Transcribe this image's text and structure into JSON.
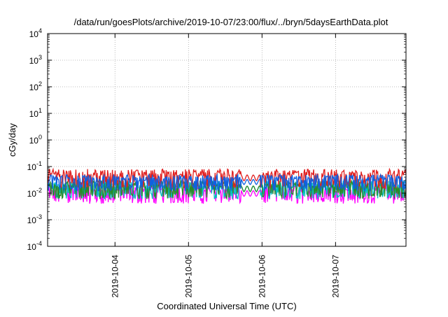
{
  "chart_data": {
    "type": "line",
    "title": "/data/run/goesPlots/archive/2019-10-07/23:00/flux/../bryn/5daysEarthData.plot",
    "xlabel": "Coordinated Universal Time (UTC)",
    "ylabel": "cGy/day",
    "yscale": "log",
    "ylim": [
      0.0001,
      10000
    ],
    "y_ticks": [
      {
        "value": 0.0001,
        "base": "10",
        "exp": "-4"
      },
      {
        "value": 0.001,
        "base": "10",
        "exp": "-3"
      },
      {
        "value": 0.01,
        "base": "10",
        "exp": "-2"
      },
      {
        "value": 0.1,
        "base": "10",
        "exp": "-1"
      },
      {
        "value": 1,
        "base": "10",
        "exp": "0"
      },
      {
        "value": 10,
        "base": "10",
        "exp": "1"
      },
      {
        "value": 100,
        "base": "10",
        "exp": "2"
      },
      {
        "value": 1000,
        "base": "10",
        "exp": "3"
      },
      {
        "value": 10000,
        "base": "10",
        "exp": "4"
      }
    ],
    "xlim": [
      "2019-10-03 02:00",
      "2019-10-07 23:00"
    ],
    "x_ticks": [
      "2019-10-04",
      "2019-10-05",
      "2019-10-06",
      "2019-10-07"
    ],
    "grid": true,
    "series": [
      {
        "color": "#ff00ff",
        "approx_range": [
          0.004,
          0.02
        ]
      },
      {
        "color": "#00c0c0",
        "approx_range": [
          0.006,
          0.03
        ]
      },
      {
        "color": "#2a8a2a",
        "approx_range": [
          0.006,
          0.03
        ]
      },
      {
        "color": "#e02020",
        "approx_range": [
          0.015,
          0.08
        ]
      },
      {
        "color": "#1060e0",
        "approx_range": [
          0.012,
          0.05
        ]
      }
    ]
  }
}
